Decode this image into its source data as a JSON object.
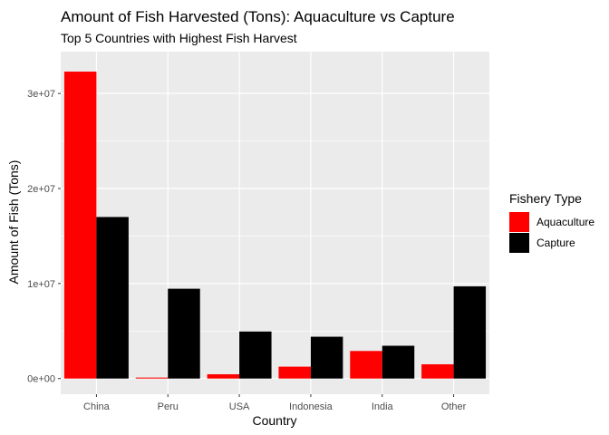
{
  "chart_data": {
    "type": "bar",
    "title": "Amount of Fish Harvested (Tons): Aquaculture vs Capture",
    "subtitle": "Top 5 Countries with Highest Fish Harvest",
    "xlabel": "Country",
    "ylabel": "Amount of Fish (Tons)",
    "categories": [
      "China",
      "Peru",
      "USA",
      "Indonesia",
      "India",
      "Other"
    ],
    "series": [
      {
        "name": "Aquaculture",
        "color": "#ff0000",
        "values": [
          32300000,
          100000,
          450000,
          1250000,
          2900000,
          1500000
        ]
      },
      {
        "name": "Capture",
        "color": "#000000",
        "values": [
          17000000,
          9450000,
          4950000,
          4400000,
          3450000,
          9700000
        ]
      }
    ],
    "ylim": [
      -1650000,
      34400000
    ],
    "yticks": [
      0,
      10000000,
      20000000,
      30000000
    ],
    "ytick_labels": [
      "0e+00",
      "1e+07",
      "2e+07",
      "3e+07"
    ],
    "grid": true,
    "legend": {
      "title": "Fishery Type",
      "position": "right"
    },
    "panel_background": "#ebebeb",
    "grid_color": "#ffffff"
  }
}
